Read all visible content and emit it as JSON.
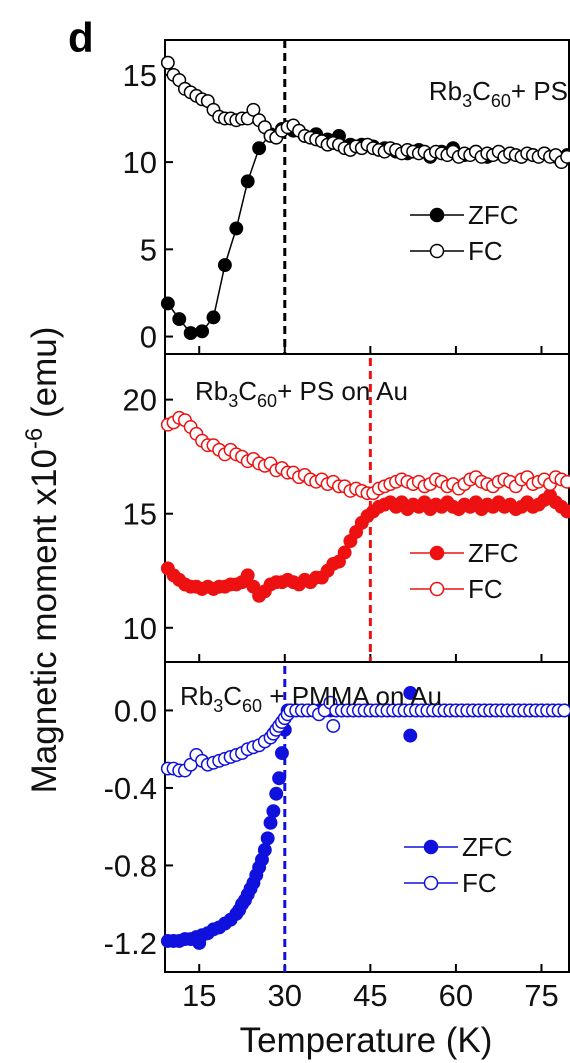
{
  "panel_letter": "d",
  "xlabel": "Temperature (K)",
  "ylabel_main": "Magnetic moment x10",
  "ylabel_exp": "-6",
  "ylabel_unit": " (emu)",
  "chart_data": [
    {
      "type": "scatter",
      "title_parts": {
        "a": "Rb",
        "b": "3",
        "c": "C",
        "d": "60",
        "e": "+ PS"
      },
      "xlim": [
        9,
        80
      ],
      "ylim": [
        -1,
        17
      ],
      "yticks": [
        0,
        5,
        10,
        15
      ],
      "tick_labels": [
        "0",
        "5",
        "10",
        "15"
      ],
      "transition_temperature": 30,
      "line_color": "#000000",
      "series": [
        {
          "name": "ZFC",
          "filled": true,
          "connected": true,
          "x": [
            9.5,
            11.5,
            13.5,
            15.5,
            17.5,
            19.5,
            21.5,
            23.5,
            25.5,
            27.5,
            29.5,
            31.5,
            33.5,
            35.5,
            37.5,
            39.5,
            41.5,
            43.5,
            45.5,
            47.5,
            49.5,
            51.5,
            53.5,
            55.5,
            57.5,
            59.5,
            61.5,
            63.5,
            65.5,
            67.5,
            69.5,
            71.5,
            73.5,
            75.5,
            77.5,
            79.5
          ],
          "y": [
            1.9,
            1.0,
            0.2,
            0.3,
            1.1,
            4.1,
            6.2,
            8.9,
            10.8,
            11.6,
            11.9,
            11.8,
            11.5,
            11.6,
            11.3,
            11.5,
            11.0,
            11.0,
            10.9,
            10.8,
            10.6,
            10.5,
            10.7,
            10.3,
            10.6,
            10.8,
            10.4,
            10.6,
            10.3,
            10.5,
            10.5,
            10.3,
            10.4,
            10.5,
            10.3,
            10.4
          ]
        },
        {
          "name": "FC",
          "filled": false,
          "connected": true,
          "x": [
            9.5,
            10.5,
            11.5,
            12.5,
            13.5,
            14.5,
            15.5,
            16.5,
            17.5,
            18.5,
            19.5,
            20.5,
            21.5,
            22.5,
            23.5,
            24.5,
            25.5,
            26.5,
            27.5,
            28.5,
            29.5,
            30.5,
            31.5,
            32.5,
            33.5,
            34.5,
            35.5,
            36.5,
            37.5,
            38.5,
            39.5,
            40.5,
            41.5,
            42.5,
            43.5,
            44.5,
            45.5,
            46.5,
            47.5,
            48.5,
            49.5,
            50.5,
            51.5,
            52.5,
            53.5,
            54.5,
            55.5,
            56.5,
            57.5,
            58.5,
            59.5,
            60.5,
            61.5,
            62.5,
            63.5,
            64.5,
            65.5,
            66.5,
            67.5,
            68.5,
            69.5,
            70.5,
            71.5,
            72.5,
            73.5,
            74.5,
            75.5,
            76.5,
            77.5,
            78.5,
            79.5
          ],
          "y": [
            15.7,
            15.0,
            14.7,
            14.2,
            14.0,
            13.8,
            13.6,
            13.5,
            13.0,
            12.6,
            12.5,
            12.5,
            12.4,
            12.5,
            12.5,
            13.0,
            12.4,
            12.0,
            11.5,
            11.4,
            11.8,
            12.0,
            12.1,
            11.8,
            11.5,
            11.4,
            11.3,
            11.2,
            11.0,
            11.1,
            11.0,
            10.8,
            10.7,
            10.9,
            10.8,
            11.0,
            10.8,
            10.7,
            10.6,
            10.8,
            10.7,
            10.5,
            10.7,
            10.6,
            10.5,
            10.6,
            10.4,
            10.6,
            10.5,
            10.4,
            10.6,
            10.3,
            10.5,
            10.4,
            10.6,
            10.3,
            10.5,
            10.4,
            10.6,
            10.3,
            10.5,
            10.4,
            10.3,
            10.5,
            10.4,
            10.3,
            10.5,
            10.3,
            10.4,
            10.0,
            10.3
          ]
        }
      ]
    },
    {
      "type": "scatter",
      "title_parts": {
        "a": "Rb",
        "b": "3",
        "c": "C",
        "d": "60",
        "e": "+ PS on Au"
      },
      "xlim": [
        9,
        80
      ],
      "ylim": [
        8.5,
        22
      ],
      "yticks": [
        10,
        15,
        20
      ],
      "tick_labels": [
        "10",
        "15",
        "20"
      ],
      "transition_temperature": 45,
      "line_color": "#ee1111",
      "series": [
        {
          "name": "ZFC",
          "filled": true,
          "connected": false,
          "x": [
            9.5,
            10.5,
            11.5,
            12.5,
            13.5,
            14.5,
            15.5,
            16.5,
            17.5,
            18.5,
            19.5,
            20.5,
            21.5,
            22.5,
            23.5,
            24.5,
            25.5,
            26.5,
            27.5,
            28.5,
            29.5,
            30.5,
            31.5,
            32.5,
            33.5,
            34.5,
            35.5,
            36.5,
            37.5,
            38.5,
            39.5,
            40.5,
            41.5,
            42.5,
            43.5,
            44.5,
            45.5,
            46.5,
            47.5,
            48.5,
            49.5,
            50.5,
            51.5,
            52.5,
            53.5,
            54.5,
            55.5,
            56.5,
            57.5,
            58.5,
            59.5,
            60.5,
            61.5,
            62.5,
            63.5,
            64.5,
            65.5,
            66.5,
            67.5,
            68.5,
            69.5,
            70.5,
            71.5,
            72.5,
            73.5,
            74.5,
            75.5,
            76.5,
            77.5,
            78.5,
            79.5
          ],
          "y": [
            12.6,
            12.3,
            12.1,
            11.9,
            11.8,
            11.8,
            11.7,
            11.8,
            11.7,
            11.8,
            11.8,
            11.9,
            11.9,
            12.0,
            12.3,
            11.8,
            11.4,
            11.6,
            11.9,
            12.0,
            12.0,
            12.1,
            12.0,
            11.9,
            12.1,
            12.0,
            12.2,
            12.2,
            12.5,
            12.8,
            12.9,
            13.3,
            13.8,
            14.2,
            14.6,
            14.9,
            15.1,
            15.3,
            15.4,
            15.5,
            15.3,
            15.5,
            15.2,
            15.4,
            15.3,
            15.5,
            15.2,
            15.4,
            15.3,
            15.5,
            15.3,
            15.2,
            15.4,
            15.3,
            15.5,
            15.2,
            15.4,
            15.3,
            15.5,
            15.3,
            15.4,
            15.2,
            15.3,
            15.5,
            15.3,
            15.4,
            15.6,
            15.8,
            15.5,
            15.3,
            15.1
          ]
        },
        {
          "name": "FC",
          "filled": false,
          "connected": false,
          "x": [
            9.5,
            10.5,
            11.5,
            12.5,
            13.5,
            14.5,
            15.5,
            16.5,
            17.5,
            18.5,
            19.5,
            20.5,
            21.5,
            22.5,
            23.5,
            24.5,
            25.5,
            26.5,
            27.5,
            28.5,
            29.5,
            30.5,
            31.5,
            32.5,
            33.5,
            34.5,
            35.5,
            36.5,
            37.5,
            38.5,
            39.5,
            40.5,
            41.5,
            42.5,
            43.5,
            44.5,
            45.5,
            46.5,
            47.5,
            48.5,
            49.5,
            50.5,
            51.5,
            52.5,
            53.5,
            54.5,
            55.5,
            56.5,
            57.5,
            58.5,
            59.5,
            60.5,
            61.5,
            62.5,
            63.5,
            64.5,
            65.5,
            66.5,
            67.5,
            68.5,
            69.5,
            70.5,
            71.5,
            72.5,
            73.5,
            74.5,
            75.5,
            76.5,
            77.5,
            78.5,
            79.5
          ],
          "y": [
            18.9,
            19.0,
            19.2,
            19.1,
            18.8,
            18.5,
            18.2,
            18.0,
            18.0,
            17.8,
            17.6,
            17.8,
            17.6,
            17.5,
            17.3,
            17.4,
            17.2,
            17.1,
            17.2,
            16.9,
            17.0,
            16.8,
            16.8,
            16.6,
            16.7,
            16.5,
            16.4,
            16.5,
            16.3,
            16.4,
            16.2,
            16.2,
            16.0,
            16.1,
            16.0,
            15.9,
            15.9,
            16.1,
            16.2,
            16.3,
            16.4,
            16.5,
            16.4,
            16.3,
            16.4,
            16.2,
            16.3,
            16.5,
            16.4,
            16.2,
            16.3,
            16.1,
            16.3,
            16.5,
            16.6,
            16.4,
            16.3,
            16.2,
            16.4,
            16.5,
            16.4,
            16.2,
            16.5,
            16.6,
            16.3,
            16.4,
            16.5,
            16.3,
            16.6,
            16.5,
            16.4
          ]
        }
      ]
    },
    {
      "type": "scatter",
      "title_parts": {
        "a": "Rb",
        "b": "3",
        "c": "C",
        "d": "60",
        "e": " + PMMA on Au"
      },
      "xlim": [
        9,
        80
      ],
      "ylim": [
        -1.35,
        0.25
      ],
      "yticks": [
        -1.2,
        -0.8,
        -0.4,
        0.0
      ],
      "tick_labels": [
        "-1.2",
        "-0.8",
        "-0.4",
        "0.0"
      ],
      "transition_temperature": 30,
      "line_color": "#1111dd",
      "series": [
        {
          "name": "ZFC",
          "filled": true,
          "connected": false,
          "x": [
            9.5,
            10.5,
            11.5,
            12.5,
            13.5,
            14.5,
            15.0,
            15.5,
            16.5,
            17.5,
            18.5,
            19.5,
            20.5,
            21.5,
            22.0,
            22.5,
            23.0,
            23.5,
            24.0,
            24.5,
            25.0,
            25.5,
            26.0,
            26.5,
            27.0,
            27.5,
            28.0,
            28.5,
            29.0,
            29.5,
            30.0,
            30.5,
            31.0,
            32.0,
            33.0,
            34.0,
            35.0,
            36.0,
            37.0,
            38.0,
            39.0,
            40.0,
            41.0,
            42.0,
            43.0,
            44.0,
            45.0,
            46.0,
            47.0,
            48.0,
            49.0,
            50.0,
            51.0,
            52.0,
            52.0,
            53.0,
            54.0,
            55.0,
            56.0,
            57.0,
            58.0,
            59.0,
            60.0,
            61.0,
            62.0,
            63.0,
            64.0,
            65.0,
            66.0,
            67.0,
            68.0,
            69.0,
            70.0,
            71.0,
            72.0,
            73.0,
            74.0,
            75.0,
            76.0,
            77.0,
            78.0,
            79.0
          ],
          "y": [
            -1.19,
            -1.19,
            -1.19,
            -1.18,
            -1.18,
            -1.17,
            -1.2,
            -1.16,
            -1.15,
            -1.13,
            -1.12,
            -1.1,
            -1.08,
            -1.05,
            -1.03,
            -1.0,
            -0.98,
            -0.95,
            -0.92,
            -0.89,
            -0.85,
            -0.81,
            -0.77,
            -0.72,
            -0.66,
            -0.58,
            -0.52,
            -0.43,
            -0.35,
            -0.22,
            -0.1,
            0.0,
            0.0,
            0.0,
            0.0,
            0.0,
            0.0,
            0.0,
            0.0,
            0.0,
            0.0,
            0.0,
            0.0,
            0.0,
            0.0,
            0.0,
            0.0,
            0.0,
            0.0,
            0.0,
            0.0,
            0.0,
            0.0,
            0.09,
            -0.13,
            0.0,
            0.0,
            0.0,
            0.0,
            0.0,
            0.0,
            0.0,
            0.0,
            0.0,
            0.0,
            0.0,
            0.0,
            0.0,
            0.0,
            0.0,
            0.0,
            0.0,
            0.0,
            0.0,
            0.0,
            0.0,
            0.0,
            0.0,
            0.0,
            0.0,
            0.0,
            0.0
          ]
        },
        {
          "name": "FC",
          "filled": false,
          "connected": false,
          "x": [
            9.5,
            10.5,
            11.5,
            12.5,
            13.5,
            14.5,
            15.5,
            16.5,
            17.5,
            18.5,
            19.5,
            20.5,
            21.5,
            22.5,
            23.5,
            24.5,
            25.5,
            26.5,
            27.5,
            28.0,
            28.5,
            29.0,
            29.5,
            30.0,
            30.5,
            31.0,
            32.0,
            33.0,
            34.0,
            35.0,
            36.0,
            37.0,
            38.0,
            38.5,
            39.0,
            40.0,
            41.0,
            42.0,
            43.0,
            44.0,
            45.0,
            46.0,
            47.0,
            48.0,
            49.0,
            50.0,
            51.0,
            52.0,
            53.0,
            54.0,
            55.0,
            56.0,
            57.0,
            58.0,
            59.0,
            60.0,
            61.0,
            62.0,
            63.0,
            64.0,
            65.0,
            66.0,
            67.0,
            68.0,
            69.0,
            70.0,
            71.0,
            72.0,
            73.0,
            74.0,
            75.0,
            76.0,
            77.0,
            78.0,
            79.0
          ],
          "y": [
            -0.3,
            -0.3,
            -0.31,
            -0.31,
            -0.28,
            -0.23,
            -0.26,
            -0.28,
            -0.27,
            -0.26,
            -0.25,
            -0.24,
            -0.23,
            -0.22,
            -0.2,
            -0.19,
            -0.18,
            -0.16,
            -0.14,
            -0.12,
            -0.1,
            -0.08,
            -0.06,
            -0.04,
            -0.02,
            0.0,
            0.0,
            0.0,
            0.0,
            0.0,
            -0.02,
            0.0,
            0.04,
            -0.08,
            0.0,
            0.0,
            0.0,
            0.0,
            0.0,
            0.0,
            0.0,
            0.0,
            0.0,
            0.0,
            0.0,
            0.0,
            0.0,
            0.0,
            0.0,
            0.0,
            0.0,
            0.0,
            0.0,
            0.0,
            0.0,
            0.0,
            0.0,
            0.0,
            0.0,
            0.0,
            0.0,
            0.0,
            0.0,
            0.0,
            0.0,
            0.0,
            0.0,
            0.0,
            0.0,
            0.0,
            0.0,
            0.0,
            0.0,
            0.0,
            0.0
          ]
        }
      ]
    }
  ],
  "xaxis": {
    "xlim": [
      9,
      80
    ],
    "xticks": [
      15,
      30,
      45,
      60,
      75
    ],
    "tick_labels": [
      "15",
      "30",
      "45",
      "60",
      "75"
    ]
  }
}
